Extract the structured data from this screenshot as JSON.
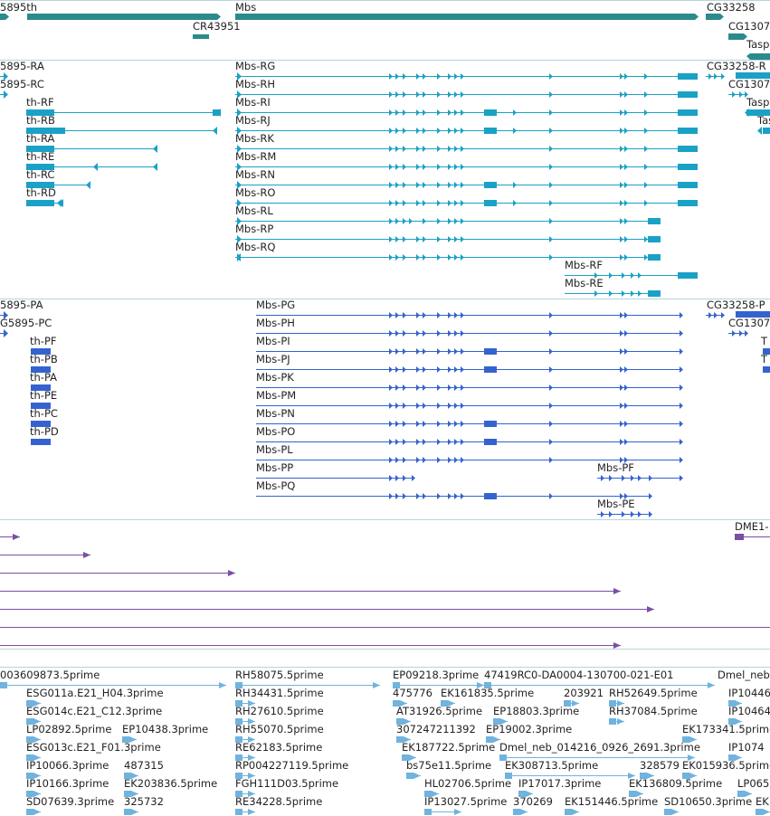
{
  "colors": {
    "gene": "#2b8a8c",
    "transcript": "#1aa1c6",
    "protein": "#3463cf",
    "dna": "#7a4ea6",
    "est": "#6fb3de",
    "separator": "#b9d3dc"
  },
  "gene_track": {
    "labels": {
      "th": "5895th",
      "mbs": "Mbs",
      "cg33258": "CG33258",
      "cr43951": "CR43951",
      "cg1307": "CG1307",
      "tasp": "Tasp"
    }
  },
  "transcript_track": {
    "left": [
      "5895-RA",
      "5895-RC"
    ],
    "th": [
      "th-RF",
      "th-RB",
      "th-RA",
      "th-RE",
      "th-RC",
      "th-RD"
    ],
    "mbs": [
      "Mbs-RG",
      "Mbs-RH",
      "Mbs-RI",
      "Mbs-RJ",
      "Mbs-RK",
      "Mbs-RM",
      "Mbs-RN",
      "Mbs-RO",
      "Mbs-RL",
      "Mbs-RP",
      "Mbs-RQ"
    ],
    "mbs_short": [
      "Mbs-RF",
      "Mbs-RE"
    ],
    "right": [
      "CG33258-R",
      "CG1307",
      "Tasp",
      "Tas"
    ]
  },
  "protein_track": {
    "left": [
      "5895-PA",
      "G5895-PC"
    ],
    "th": [
      "th-PF",
      "th-PB",
      "th-PA",
      "th-PE",
      "th-PC",
      "th-PD"
    ],
    "mbs": [
      "Mbs-PG",
      "Mbs-PH",
      "Mbs-PI",
      "Mbs-PJ",
      "Mbs-PK",
      "Mbs-PM",
      "Mbs-PN",
      "Mbs-PO",
      "Mbs-PL",
      "Mbs-PP",
      "Mbs-PQ"
    ],
    "mbs_short": [
      "Mbs-PF",
      "Mbs-PE"
    ],
    "right": [
      "CG33258-P",
      "CG1307",
      "T",
      "T"
    ]
  },
  "dna_track": {
    "label": "DME1-"
  },
  "est_track": {
    "labels": [
      "003609873.5prime",
      "RH58075.5prime",
      "EP09218.3prime",
      "47419RC0-DA0004-130700-021-E01",
      "Dmel_neb",
      "ESG011a.E21_H04.3prime",
      "RH34431.5prime",
      "475776",
      "EK161835.5prime",
      "203921",
      "RH52649.5prime",
      "IP10446",
      "ESG014c.E21_C12.3prime",
      "RH27610.5prime",
      "AT31926.5prime",
      "EP18803.3prime",
      "RH37084.5prime",
      "IP10464",
      "LP02892.5prime",
      "EP10438.3prime",
      "RH55070.5prime",
      "307247211392",
      "EP19002.3prime",
      "EK173341.5prime",
      "ESG013c.E21_F01.3prime",
      "RE62183.5prime",
      "EK187722.5prime",
      "Dmel_neb_014216_0926_2691.3prime",
      "IP1074",
      "IP10066.3prime",
      "487315",
      "RP004227119.5prime",
      "bs75e11.5prime",
      "EK308713.5prime",
      "328579",
      "EK015936.5prime",
      "IP10166.3prime",
      "EK203836.5prime",
      "FGH111D03.5prime",
      "HL02706.5prime",
      "IP17017.3prime",
      "EK136809.5prime",
      "LP065",
      "SD07639.3prime",
      "325732",
      "RE34228.5prime",
      "IP13027.5prime",
      "370269",
      "EK151446.5prime",
      "SD10650.3prime",
      "EK"
    ]
  }
}
